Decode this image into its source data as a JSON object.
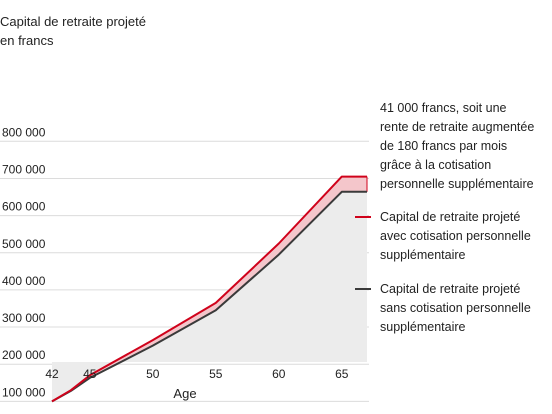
{
  "colors": {
    "with_line": "#d0021b",
    "without_line": "#3a3a3a",
    "gap_fill": "#f4c6cb",
    "area_fill": "#ececec",
    "grid": "#dcdcdc"
  },
  "chart_data": {
    "type": "area",
    "title_lines": [
      "Capital de retraite projeté",
      "en francs"
    ],
    "xlabel": "Age",
    "ylabel": "Capital de retraite projeté en francs",
    "xlim": [
      42,
      67
    ],
    "ylim": [
      0,
      800000
    ],
    "x_ticks": [
      42,
      45,
      50,
      55,
      60,
      65
    ],
    "y_ticks": [
      {
        "value": 100000,
        "label": "100 000"
      },
      {
        "value": 200000,
        "label": "200 000"
      },
      {
        "value": 300000,
        "label": "300 000"
      },
      {
        "value": 400000,
        "label": "400 000"
      },
      {
        "value": 500000,
        "label": "500 000"
      },
      {
        "value": 600000,
        "label": "600 000"
      },
      {
        "value": 700000,
        "label": "700 000"
      },
      {
        "value": 800000,
        "label": "800 000"
      }
    ],
    "grid": "horizontal",
    "x": [
      42,
      43.5,
      45,
      50,
      55,
      60,
      65,
      67
    ],
    "series": [
      {
        "key": "with",
        "name": "Capital de retraite projeté avec cotisation personnelle supplémentaire",
        "values": [
          100000,
          130000,
          170000,
          265000,
          365000,
          525000,
          705000,
          705000
        ]
      },
      {
        "key": "without",
        "name": "Capital de retraite projeté sans cotisation personnelle supplémentaire",
        "values": [
          100000,
          128000,
          163000,
          250000,
          345000,
          495000,
          664000,
          664000
        ]
      }
    ],
    "annotations": [
      {
        "key": "difference",
        "lines": [
          "41 000 francs, soit une",
          "rente de retraite augmentée",
          "de 180 francs par mois",
          "grâce à la cotisation",
          "personnelle supplémentaire"
        ]
      }
    ],
    "legend": {
      "placement": "right",
      "entries": [
        {
          "series": "with",
          "lines": [
            "Capital de retraite projeté",
            "avec cotisation personnelle",
            "supplémentaire"
          ]
        },
        {
          "series": "without",
          "lines": [
            "Capital de retraite projeté",
            "sans cotisation personnelle",
            "supplémentaire"
          ]
        }
      ]
    }
  }
}
